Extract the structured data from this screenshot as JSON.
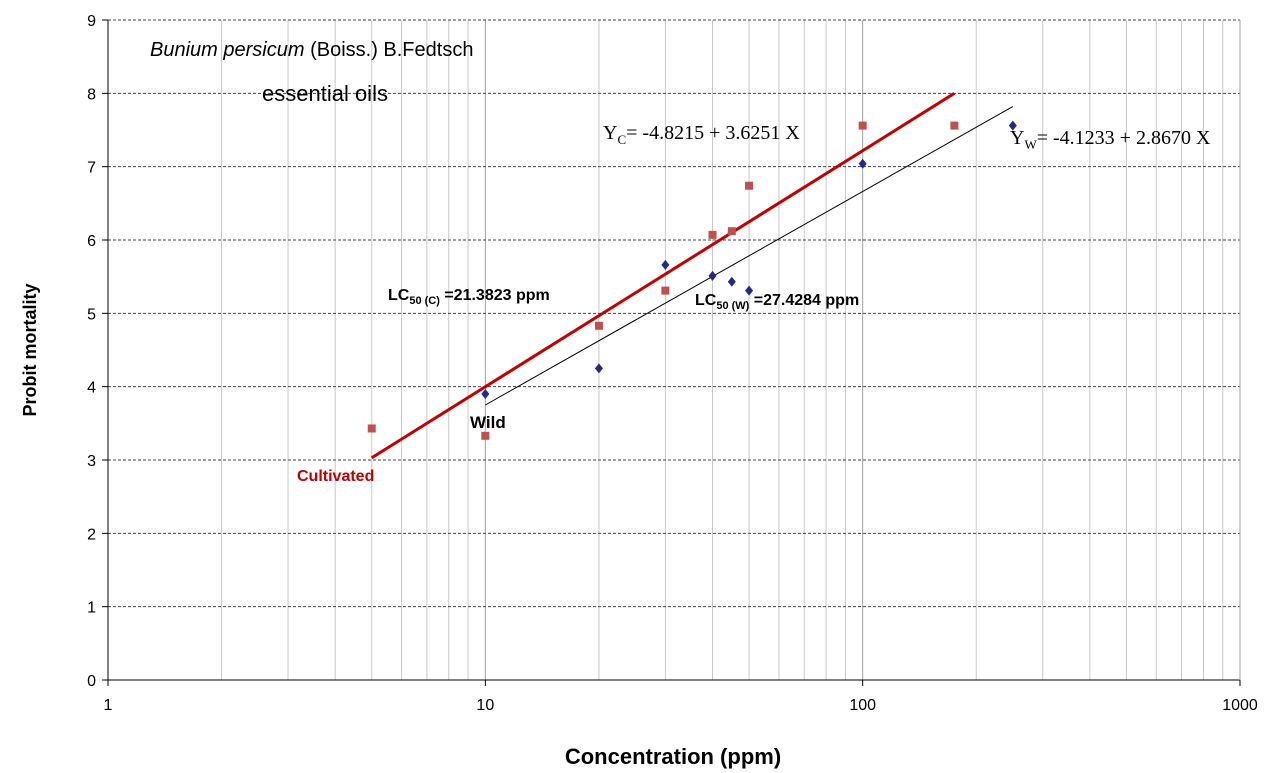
{
  "chart_data": {
    "type": "scatter",
    "title": {
      "italic": "Bunium persicum",
      "rest": " (Boiss.) B.Fedtsch",
      "subtitle": "essential oils"
    },
    "xlabel": "Concentration (ppm)",
    "ylabel": "Probit mortality",
    "xscale": "log",
    "xlim": [
      1,
      1000
    ],
    "xticks": [
      1,
      10,
      100,
      1000
    ],
    "xgrid_minor": [
      2,
      3,
      4,
      5,
      6,
      7,
      8,
      9,
      20,
      30,
      40,
      50,
      60,
      70,
      80,
      90,
      200,
      300,
      400,
      500,
      600,
      700,
      800,
      900
    ],
    "ylim": [
      0,
      9
    ],
    "yticks": [
      0,
      1,
      2,
      3,
      4,
      5,
      6,
      7,
      8,
      9
    ],
    "grid": true,
    "series": [
      {
        "name": "Cultivated",
        "color": "#c0504d",
        "marker": "square",
        "x": [
          5,
          10,
          20,
          30,
          40,
          45,
          50,
          100,
          175
        ],
        "values": [
          3.43,
          3.33,
          4.83,
          5.31,
          6.07,
          6.12,
          6.74,
          7.56,
          7.56
        ]
      },
      {
        "name": "Wild",
        "color": "#1f2a8a",
        "marker": "diamond",
        "x": [
          10,
          20,
          30,
          40,
          45,
          50,
          100,
          250
        ],
        "values": [
          3.9,
          4.25,
          5.66,
          5.51,
          5.43,
          5.31,
          7.04,
          7.56
        ]
      }
    ],
    "fit_lines": [
      {
        "color": "#c00000",
        "width": 3,
        "x": [
          5,
          175
        ],
        "values": [
          3.03,
          8.0
        ]
      },
      {
        "color": "#000000",
        "width": 1,
        "x": [
          10,
          250
        ],
        "values": [
          3.75,
          7.82
        ]
      }
    ],
    "equations": [
      {
        "y": "Y",
        "sub": "C",
        "rest": "= -4.8215 + 3.6251 X"
      },
      {
        "y": "Y",
        "sub": "W",
        "rest": "= -4.1233 + 2.8670 X"
      }
    ],
    "lc50": [
      {
        "lc": "LC",
        "sub": "50 (C)",
        "rest": " =21.3823 ppm"
      },
      {
        "lc": "LC",
        "sub": "50 (W)",
        "rest": " =27.4284 ppm"
      }
    ]
  }
}
